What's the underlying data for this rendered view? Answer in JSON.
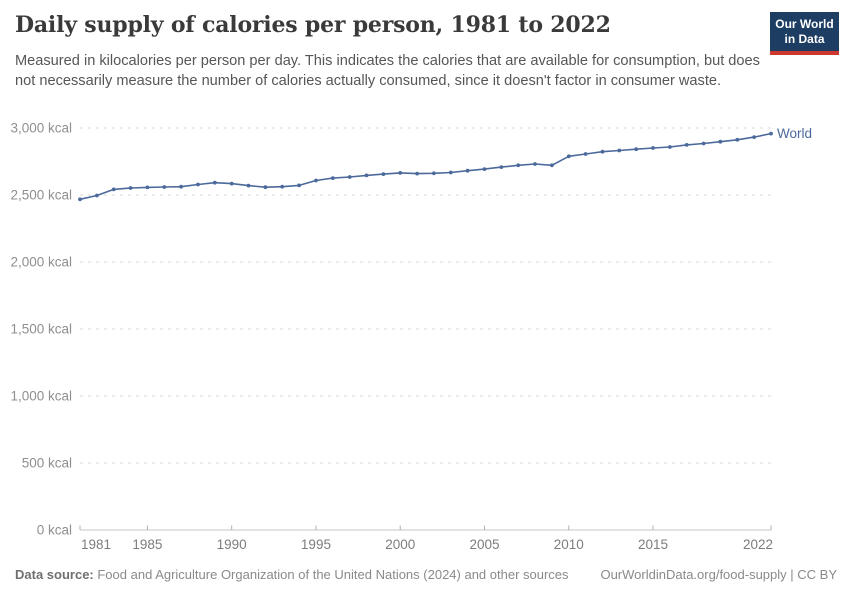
{
  "header": {
    "title": "Daily supply of calories per person, 1981 to 2022",
    "subtitle": "Measured in kilocalories per person per day. This indicates the calories that are available for consumption, but does not necessarily measure the number of calories actually consumed, since it doesn't factor in consumer waste.",
    "logo": {
      "line1": "Our World",
      "line2": "in Data",
      "bg_color": "#1d3d63",
      "stripe_color": "#cc3830"
    }
  },
  "chart_data": {
    "type": "line",
    "title": "Daily supply of calories per person, 1981 to 2022",
    "xlabel": "",
    "ylabel": "",
    "xlim": [
      1981,
      2022
    ],
    "ylim": [
      0,
      3000
    ],
    "grid": "horizontal-dashed",
    "legend_position": "end-of-line",
    "x_ticks": [
      1981,
      1985,
      1990,
      1995,
      2000,
      2005,
      2010,
      2015,
      2022
    ],
    "y_ticks": [
      {
        "value": 0,
        "label": "0 kcal"
      },
      {
        "value": 500,
        "label": "500 kcal"
      },
      {
        "value": 1000,
        "label": "1,000 kcal"
      },
      {
        "value": 1500,
        "label": "1,500 kcal"
      },
      {
        "value": 2000,
        "label": "2,000 kcal"
      },
      {
        "value": 2500,
        "label": "2,500 kcal"
      },
      {
        "value": 3000,
        "label": "3,000 kcal"
      }
    ],
    "series": [
      {
        "name": "World",
        "color": "#4b6a9b",
        "x": [
          1981,
          1982,
          1983,
          1984,
          1985,
          1986,
          1987,
          1988,
          1989,
          1990,
          1991,
          1992,
          1993,
          1994,
          1995,
          1996,
          1997,
          1998,
          1999,
          2000,
          2001,
          2002,
          2003,
          2004,
          2005,
          2006,
          2007,
          2008,
          2009,
          2010,
          2011,
          2012,
          2013,
          2014,
          2015,
          2016,
          2017,
          2018,
          2019,
          2020,
          2021,
          2022
        ],
        "values": [
          2468,
          2496,
          2542,
          2552,
          2557,
          2560,
          2562,
          2578,
          2592,
          2585,
          2570,
          2558,
          2562,
          2572,
          2608,
          2626,
          2634,
          2646,
          2656,
          2665,
          2660,
          2662,
          2668,
          2681,
          2693,
          2708,
          2722,
          2731,
          2722,
          2789,
          2806,
          2823,
          2832,
          2842,
          2851,
          2858,
          2874,
          2884,
          2898,
          2912,
          2932,
          2958
        ]
      }
    ]
  },
  "footer": {
    "source_label": "Data source:",
    "source_text": " Food and Agriculture Organization of the United Nations (2024) and other sources",
    "link": "OurWorldinData.org/food-supply",
    "separator": " | ",
    "license": "CC BY"
  },
  "colors": {
    "line": "#4b6a9b",
    "gridline": "#dadada",
    "axis": "#c6c6c6",
    "tick": "#b0b0b0",
    "y_label": "#8f8f8f",
    "x_label": "#7d7d7d",
    "title": "#3a3a3a",
    "subtitle": "#565656"
  }
}
